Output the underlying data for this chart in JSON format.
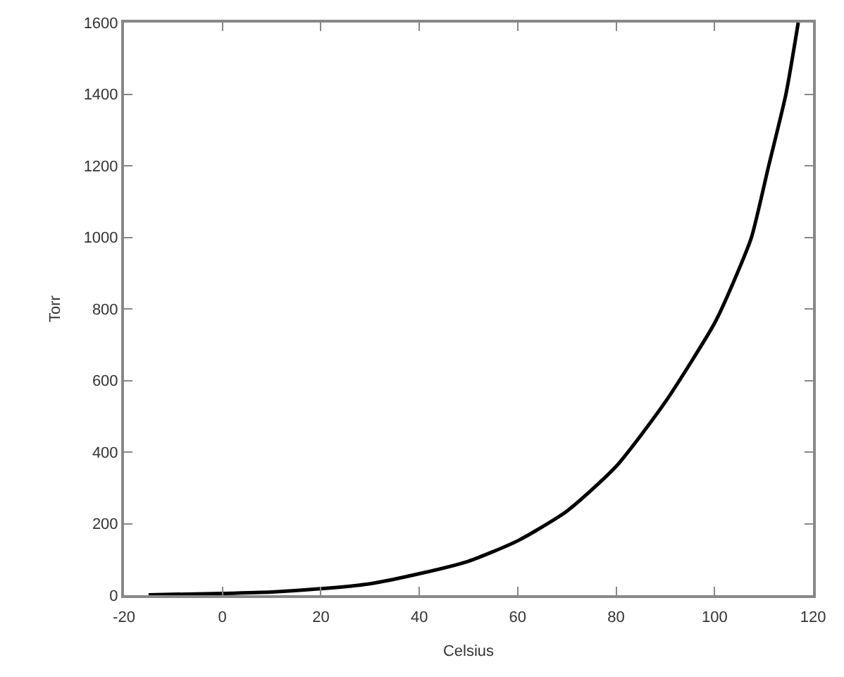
{
  "chart_data": {
    "type": "line",
    "xlabel": "Celsius",
    "ylabel": "Torr",
    "series": [
      {
        "color": "#000000",
        "x": [
          -15,
          0,
          10,
          20,
          30,
          40,
          50,
          60,
          70,
          80,
          90,
          100,
          104,
          107.5,
          111,
          114.5,
          117
        ],
        "values": [
          1,
          5,
          9,
          18,
          32,
          60,
          95,
          152,
          235,
          360,
          540,
          760,
          880,
          1000,
          1200,
          1400,
          1600
        ]
      }
    ],
    "xlim": [
      -20,
      120
    ],
    "xticks": [
      -20,
      0,
      20,
      40,
      60,
      80,
      100,
      120
    ],
    "ylim": [
      0,
      1600
    ],
    "yticks": [
      0,
      200,
      400,
      600,
      800,
      1000,
      1200,
      1400,
      1600
    ],
    "grid": false,
    "marker": "none",
    "line_style": "solid"
  }
}
